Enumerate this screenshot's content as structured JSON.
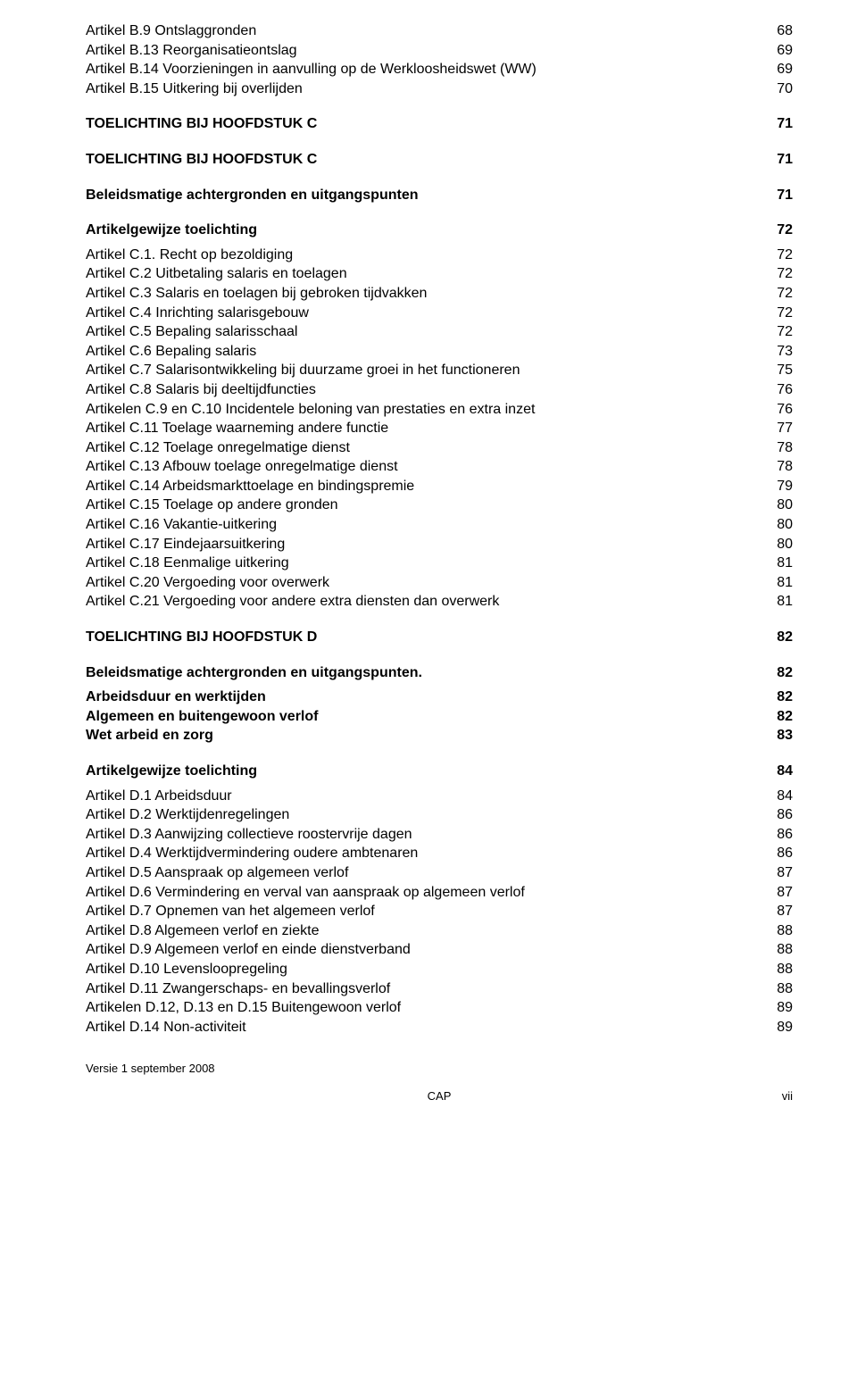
{
  "group_b_tail": [
    {
      "label": "Artikel B.9  Ontslaggronden",
      "page": "68"
    },
    {
      "label": "Artikel B.13 Reorganisatieontslag",
      "page": "69"
    },
    {
      "label": "Artikel B.14 Voorzieningen in aanvulling op de Werkloosheidswet (WW)",
      "page": "69"
    },
    {
      "label": "Artikel B.15 Uitkering bij overlijden",
      "page": "70"
    }
  ],
  "heading_c1": {
    "label": "TOELICHTING BIJ HOOFDSTUK C",
    "page": "71"
  },
  "heading_c2": {
    "label": "TOELICHTING BIJ HOOFDSTUK C",
    "page": "71"
  },
  "sub_c_beleid": {
    "label": "Beleidsmatige achtergronden en uitgangspunten",
    "page": "71"
  },
  "sub_c_artikel": {
    "label": "Artikelgewijze toelichting",
    "page": "72"
  },
  "group_c": [
    {
      "label": "Artikel C.1. Recht op bezoldiging",
      "page": "72"
    },
    {
      "label": "Artikel C.2 Uitbetaling salaris en toelagen",
      "page": "72"
    },
    {
      "label": "Artikel C.3 Salaris en toelagen bij gebroken tijdvakken",
      "page": "72"
    },
    {
      "label": "Artikel C.4 Inrichting salarisgebouw",
      "page": "72"
    },
    {
      "label": "Artikel C.5 Bepaling salarisschaal",
      "page": "72"
    },
    {
      "label": "Artikel C.6 Bepaling salaris",
      "page": "73"
    },
    {
      "label": "Artikel C.7 Salarisontwikkeling bij duurzame groei in het functioneren",
      "page": "75"
    },
    {
      "label": "Artikel C.8 Salaris bij  deeltijdfuncties",
      "page": "76"
    },
    {
      "label": "Artikelen C.9 en C.10  Incidentele beloning van prestaties en extra inzet",
      "page": "76"
    },
    {
      "label": "Artikel C.11 Toelage waarneming andere functie",
      "page": "77"
    },
    {
      "label": "Artikel C.12 Toelage onregelmatige dienst",
      "page": "78"
    },
    {
      "label": "Artikel C.13 Afbouw toelage onregelmatige dienst",
      "page": "78"
    },
    {
      "label": "Artikel C.14 Arbeidsmarkttoelage en bindingspremie",
      "page": "79"
    },
    {
      "label": "Artikel C.15 Toelage op andere gronden",
      "page": "80"
    },
    {
      "label": "Artikel C.16 Vakantie-uitkering",
      "page": "80"
    },
    {
      "label": "Artikel C.17 Eindejaarsuitkering",
      "page": "80"
    },
    {
      "label": "Artikel C.18 Eenmalige uitkering",
      "page": "81"
    },
    {
      "label": "Artikel C.20 Vergoeding voor overwerk",
      "page": "81"
    },
    {
      "label": "Artikel C.21 Vergoeding voor andere extra diensten dan overwerk",
      "page": "81"
    }
  ],
  "heading_d": {
    "label": "TOELICHTING BIJ HOOFDSTUK D",
    "page": "82"
  },
  "sub_d_beleid": {
    "label": "Beleidsmatige achtergronden en uitgangspunten.",
    "page": "82"
  },
  "group_d_sub": [
    {
      "label": "Arbeidsduur en werktijden",
      "page": "82"
    },
    {
      "label": "Algemeen en buitengewoon verlof",
      "page": "82"
    },
    {
      "label": "Wet arbeid en zorg",
      "page": "83"
    }
  ],
  "sub_d_artikel": {
    "label": "Artikelgewijze toelichting",
    "page": "84"
  },
  "group_d": [
    {
      "label": "Artikel D.1 Arbeidsduur",
      "page": "84"
    },
    {
      "label": "Artikel D.2 Werktijdenregelingen",
      "page": "86"
    },
    {
      "label": "Artikel D.3 Aanwijzing collectieve roostervrije dagen",
      "page": "86"
    },
    {
      "label": "Artikel D.4 Werktijdvermindering oudere ambtenaren",
      "page": "86"
    },
    {
      "label": "Artikel D.5 Aanspraak op algemeen verlof",
      "page": "87"
    },
    {
      "label": "Artikel D.6 Vermindering en verval van  aanspraak op algemeen verlof",
      "page": "87"
    },
    {
      "label": "Artikel D.7 Opnemen van het algemeen verlof",
      "page": "87"
    },
    {
      "label": "Artikel D.8 Algemeen verlof en ziekte",
      "page": "88"
    },
    {
      "label": "Artikel D.9 Algemeen verlof en einde dienstverband",
      "page": "88"
    },
    {
      "label": "Artikel D.10 Levensloopregeling",
      "page": "88"
    },
    {
      "label": "Artikel D.11 Zwangerschaps- en bevallingsverlof",
      "page": "88"
    },
    {
      "label": "Artikelen D.12, D.13 en D.15 Buitengewoon verlof",
      "page": "89"
    },
    {
      "label": "Artikel D.14 Non-activiteit",
      "page": "89"
    }
  ],
  "footer": {
    "version": "Versie 1 september 2008",
    "center": "CAP",
    "right": "vii"
  }
}
